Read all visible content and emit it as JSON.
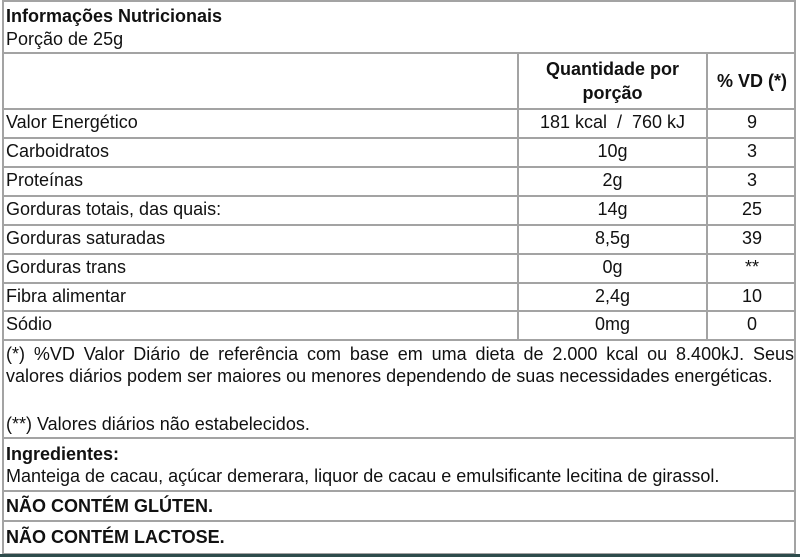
{
  "header": {
    "title": "Informações Nutricionais",
    "portion": "Porção de 25g"
  },
  "columns": {
    "quantity": "Quantidade por porção",
    "quantity_line1": "Quantidade por",
    "quantity_line2": "porção",
    "vd": "% VD (*)"
  },
  "rows": [
    {
      "name": "Valor Energético",
      "quantity": "181 kcal  /  760 kJ",
      "vd": "9"
    },
    {
      "name": "Carboidratos",
      "quantity": "10g",
      "vd": "3"
    },
    {
      "name": "Proteínas",
      "quantity": "2g",
      "vd": "3"
    },
    {
      "name": "Gorduras totais, das quais:",
      "quantity": "14g",
      "vd": "25"
    },
    {
      "name": "Gorduras saturadas",
      "quantity": "8,5g",
      "vd": "39"
    },
    {
      "name": "Gorduras trans",
      "quantity": "0g",
      "vd": "**"
    },
    {
      "name": "Fibra alimentar",
      "quantity": "2,4g",
      "vd": "10"
    },
    {
      "name": "Sódio",
      "quantity": "0mg",
      "vd": "0"
    }
  ],
  "footnotes": {
    "vd_note": "(*) %VD Valor Diário de referência com base em uma dieta de 2.000 kcal ou 8.400kJ. Seus valores diários podem ser maiores ou menores dependendo de suas necessidades energéticas.",
    "not_established": "(**) Valores diários não estabelecidos."
  },
  "ingredients": {
    "label": "Ingredientes:",
    "text": "Manteiga de cacau, açúcar demerara, liquor de cacau e emulsificante lecitina de girassol."
  },
  "notices": {
    "gluten": "NÃO CONTÉM GLÚTEN.",
    "lactose": "NÃO CONTÉM LACTOSE."
  }
}
